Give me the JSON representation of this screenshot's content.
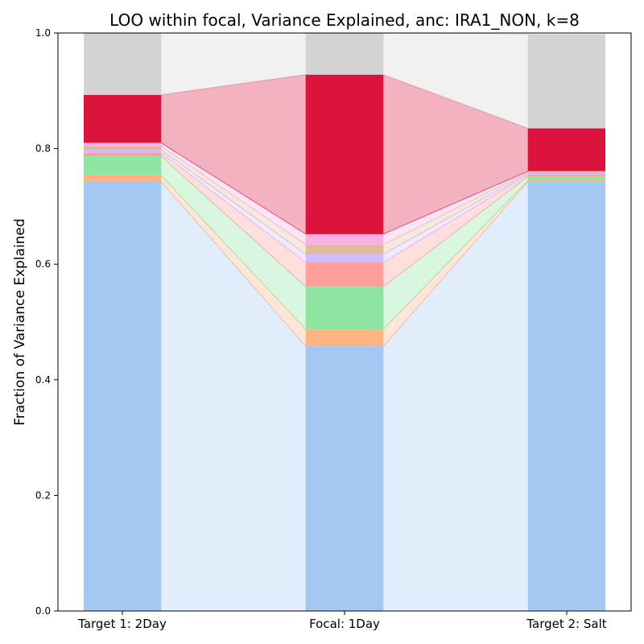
{
  "chart_data": {
    "type": "bar",
    "subtype": "stacked-bar-with-connecting-bands",
    "title": "LOO within focal, Variance Explained, anc: IRA1_NON, k=8",
    "xlabel": "",
    "ylabel": "Fraction of Variance Explained",
    "ylim": [
      0,
      1.0
    ],
    "yticks": [
      "0.0",
      "0.2",
      "0.4",
      "0.6",
      "0.8",
      "1.0"
    ],
    "grid": false,
    "legend": "none",
    "categories": [
      "Target 1: 2Day",
      "Focal: 1Day",
      "Target 2: Salt"
    ],
    "series": [
      {
        "color": "#a3c8f2",
        "values": [
          0.743,
          0.458,
          0.743
        ]
      },
      {
        "color": "#ffb482",
        "values": [
          0.011,
          0.029,
          0.002
        ]
      },
      {
        "color": "#8de5a1",
        "values": [
          0.033,
          0.074,
          0.007
        ]
      },
      {
        "color": "#ff9f9b",
        "values": [
          0.006,
          0.042,
          0.003
        ]
      },
      {
        "color": "#d0bbff",
        "values": [
          0.005,
          0.014,
          0.002
        ]
      },
      {
        "color": "#debb9b",
        "values": [
          0.006,
          0.017,
          0.002
        ]
      },
      {
        "color": "#fab0e4",
        "values": [
          0.006,
          0.018,
          0.002
        ]
      },
      {
        "color": "#dc143c",
        "values": [
          0.083,
          0.276,
          0.074
        ]
      },
      {
        "color": "#d3d3d3",
        "values": [
          0.107,
          0.072,
          0.163
        ]
      }
    ]
  }
}
